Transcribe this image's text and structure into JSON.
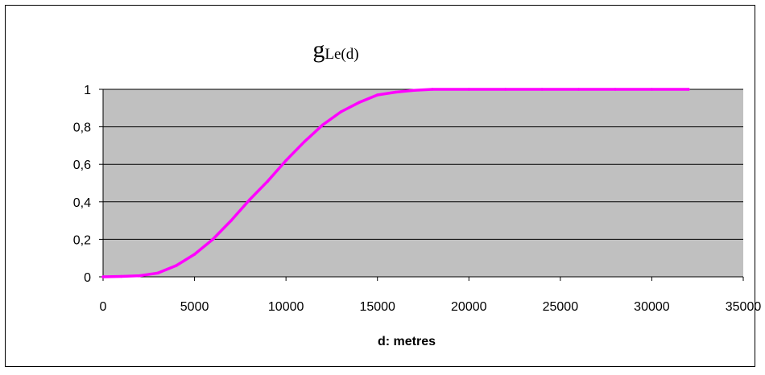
{
  "chart_data": {
    "type": "line",
    "title": "g",
    "title_subscript": "Le(d)",
    "xlabel": "d: metres",
    "ylabel": "",
    "xlim": [
      0,
      35000
    ],
    "ylim": [
      0,
      1
    ],
    "x_ticks": [
      "0",
      "5000",
      "10000",
      "15000",
      "20000",
      "25000",
      "30000",
      "35000"
    ],
    "y_ticks": [
      "0",
      "0,2",
      "0,4",
      "0,6",
      "0,8",
      "1"
    ],
    "x_tick_values": [
      0,
      5000,
      10000,
      15000,
      20000,
      25000,
      30000,
      35000
    ],
    "y_tick_values": [
      0,
      0.2,
      0.4,
      0.6,
      0.8,
      1
    ],
    "grid": "horizontal",
    "legend": "none",
    "plot_background": "#c0c0c0",
    "series": [
      {
        "color": "#ff00ff",
        "x": [
          0,
          1000,
          2000,
          3000,
          4000,
          5000,
          6000,
          7000,
          8000,
          9000,
          10000,
          11000,
          12000,
          13000,
          14000,
          15000,
          16000,
          17000,
          18000,
          20000,
          22000,
          24000,
          26000,
          28000,
          30000,
          32000
        ],
        "y": [
          0,
          0.002,
          0.006,
          0.02,
          0.06,
          0.12,
          0.2,
          0.3,
          0.41,
          0.51,
          0.62,
          0.72,
          0.81,
          0.88,
          0.93,
          0.97,
          0.985,
          0.995,
          1,
          1,
          1,
          1,
          1,
          1,
          1,
          1
        ]
      }
    ]
  }
}
